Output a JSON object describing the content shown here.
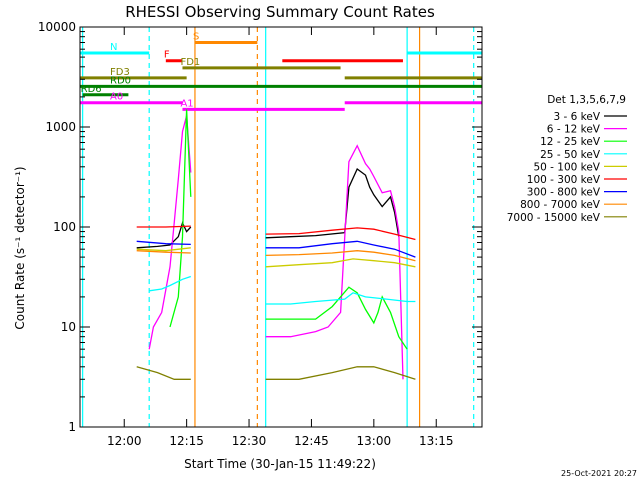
{
  "chart_data": {
    "type": "line",
    "title": "RHESSI Observing Summary Count Rates",
    "xlabel": "Start Time (30-Jan-15 11:49:22)",
    "ylabel": "Count Rate (s⁻¹ detector⁻¹)",
    "yscale": "log",
    "ylim": [
      1,
      10000
    ],
    "xlim": [
      "11:49:22",
      "13:26:00"
    ],
    "x_ticks": [
      "12:00",
      "12:15",
      "12:30",
      "12:45",
      "13:00",
      "13:15"
    ],
    "y_ticks": [
      "1",
      "10",
      "100",
      "1000",
      "10000"
    ],
    "timestamp": "25-Oct-2021 20:27",
    "legend": {
      "title": "Det 1,3,5,6,7,9",
      "position": "right"
    },
    "series": [
      {
        "name": "3 - 6 keV",
        "color": "#000000",
        "points": [
          [
            "12:03",
            62
          ],
          [
            "12:08",
            64
          ],
          [
            "12:11",
            66
          ],
          [
            "12:13",
            80
          ],
          [
            "12:14",
            110
          ],
          [
            "12:15",
            90
          ],
          [
            "12:16",
            100
          ],
          [
            null,
            null
          ],
          [
            "12:34",
            78
          ],
          [
            "12:40",
            80
          ],
          [
            "12:46",
            82
          ],
          [
            "12:53",
            88
          ],
          [
            "12:54",
            250
          ],
          [
            "12:56",
            380
          ],
          [
            "12:58",
            330
          ],
          [
            "12:59",
            250
          ],
          [
            "13:00",
            210
          ],
          [
            "13:02",
            160
          ],
          [
            "13:04",
            200
          ],
          [
            "13:05",
            140
          ],
          [
            "13:06",
            80
          ]
        ]
      },
      {
        "name": "6 - 12 keV",
        "color": "#ff00ff",
        "points": [
          [
            "12:06",
            6
          ],
          [
            "12:07",
            10
          ],
          [
            "12:09",
            14
          ],
          [
            "12:11",
            40
          ],
          [
            "12:12",
            110
          ],
          [
            "12:13",
            300
          ],
          [
            "12:14",
            900
          ],
          [
            "12:15",
            1300
          ],
          [
            "12:16",
            350
          ],
          [
            null,
            null
          ],
          [
            "12:34",
            8
          ],
          [
            "12:40",
            8
          ],
          [
            "12:46",
            9
          ],
          [
            "12:49",
            10
          ],
          [
            "12:52",
            14
          ],
          [
            "12:54",
            450
          ],
          [
            "12:56",
            650
          ],
          [
            "12:58",
            430
          ],
          [
            "12:59",
            380
          ],
          [
            "13:00",
            320
          ],
          [
            "13:02",
            220
          ],
          [
            "13:04",
            230
          ],
          [
            "13:05",
            160
          ],
          [
            "13:06",
            90
          ],
          [
            "13:07",
            3
          ]
        ]
      },
      {
        "name": "12 - 25 keV",
        "color": "#00ff00",
        "points": [
          [
            "12:11",
            10
          ],
          [
            "12:13",
            20
          ],
          [
            "12:14",
            80
          ],
          [
            "12:15",
            1500
          ],
          [
            "12:16",
            200
          ],
          [
            null,
            null
          ],
          [
            "12:34",
            12
          ],
          [
            "12:40",
            12
          ],
          [
            "12:46",
            12
          ],
          [
            "12:50",
            16
          ],
          [
            "12:54",
            25
          ],
          [
            "12:56",
            22
          ],
          [
            "12:58",
            15
          ],
          [
            "13:00",
            11
          ],
          [
            "13:01",
            14
          ],
          [
            "13:02",
            20
          ],
          [
            "13:04",
            14
          ],
          [
            "13:06",
            8
          ],
          [
            "13:08",
            6
          ]
        ]
      },
      {
        "name": "25 - 50 keV",
        "color": "#00ffff",
        "points": [
          [
            "12:06",
            23
          ],
          [
            "12:09",
            24
          ],
          [
            "12:11",
            26
          ],
          [
            "12:14",
            30
          ],
          [
            "12:16",
            32
          ],
          [
            null,
            null
          ],
          [
            "12:34",
            17
          ],
          [
            "12:40",
            17
          ],
          [
            "12:46",
            18
          ],
          [
            "12:53",
            19
          ],
          [
            "12:55",
            22
          ],
          [
            "12:58",
            20
          ],
          [
            "13:03",
            19
          ],
          [
            "13:08",
            18
          ],
          [
            "13:10",
            18
          ]
        ]
      },
      {
        "name": "50 - 100 keV",
        "color": "#cccc00",
        "points": [
          [
            "12:03",
            60
          ],
          [
            "12:10",
            58
          ],
          [
            "12:16",
            62
          ],
          [
            null,
            null
          ],
          [
            "12:34",
            40
          ],
          [
            "12:42",
            42
          ],
          [
            "12:50",
            44
          ],
          [
            "12:55",
            48
          ],
          [
            "13:00",
            46
          ],
          [
            "13:05",
            44
          ],
          [
            "13:10",
            40
          ]
        ]
      },
      {
        "name": "100 - 300 keV",
        "color": "#ff0000",
        "points": [
          [
            "12:03",
            100
          ],
          [
            "12:10",
            100
          ],
          [
            "12:16",
            102
          ],
          [
            null,
            null
          ],
          [
            "12:34",
            85
          ],
          [
            "12:42",
            86
          ],
          [
            "12:50",
            93
          ],
          [
            "12:56",
            98
          ],
          [
            "13:00",
            95
          ],
          [
            "13:05",
            85
          ],
          [
            "13:10",
            75
          ]
        ]
      },
      {
        "name": "300 - 800 keV",
        "color": "#0000ff",
        "points": [
          [
            "12:03",
            72
          ],
          [
            "12:10",
            68
          ],
          [
            "12:16",
            67
          ],
          [
            null,
            null
          ],
          [
            "12:34",
            62
          ],
          [
            "12:42",
            62
          ],
          [
            "12:50",
            68
          ],
          [
            "12:56",
            72
          ],
          [
            "13:00",
            66
          ],
          [
            "13:05",
            60
          ],
          [
            "13:10",
            50
          ]
        ]
      },
      {
        "name": "800 - 7000 keV",
        "color": "#ff8800",
        "points": [
          [
            "12:03",
            58
          ],
          [
            "12:10",
            56
          ],
          [
            "12:16",
            55
          ],
          [
            null,
            null
          ],
          [
            "12:34",
            52
          ],
          [
            "12:42",
            53
          ],
          [
            "12:50",
            55
          ],
          [
            "12:56",
            58
          ],
          [
            "13:00",
            56
          ],
          [
            "13:05",
            52
          ],
          [
            "13:10",
            46
          ]
        ]
      },
      {
        "name": "7000 - 15000 keV",
        "color": "#808000",
        "points": [
          [
            "12:03",
            4
          ],
          [
            "12:08",
            3.5
          ],
          [
            "12:12",
            3
          ],
          [
            "12:16",
            3
          ],
          [
            null,
            null
          ],
          [
            "12:34",
            3
          ],
          [
            "12:42",
            3
          ],
          [
            "12:50",
            3.5
          ],
          [
            "12:56",
            4
          ],
          [
            "13:00",
            4
          ],
          [
            "13:05",
            3.5
          ],
          [
            "13:10",
            3
          ]
        ]
      }
    ],
    "state_bars": [
      {
        "label": "N",
        "color": "#00ffff",
        "y": 5500,
        "segments": [
          [
            "11:49:22",
            "12:06"
          ],
          [
            "13:08",
            "13:26"
          ]
        ]
      },
      {
        "label": "S",
        "color": "#ff8800",
        "y": 7000,
        "segments": [
          [
            "12:17",
            "12:32"
          ]
        ]
      },
      {
        "label": "F",
        "color": "#ff0000",
        "y": 4600,
        "segments": [
          [
            "12:10",
            "12:14"
          ],
          [
            "12:38",
            "13:07"
          ]
        ]
      },
      {
        "label": "FD1",
        "color": "#808000",
        "y": 3900,
        "segments": [
          [
            "12:14",
            "12:52"
          ]
        ]
      },
      {
        "label": "FD3",
        "color": "#808000",
        "y": 3100,
        "segments": [
          [
            "11:49:22",
            "12:15"
          ],
          [
            "12:53",
            "13:26"
          ]
        ]
      },
      {
        "label": "RD0",
        "color": "#008000",
        "y": 2550,
        "segments": [
          [
            "11:49:22",
            "13:26"
          ]
        ]
      },
      {
        "label": "RD6",
        "color": "#008000",
        "y": 2100,
        "segments": [
          [
            "11:50",
            "12:01"
          ]
        ]
      },
      {
        "label": "A1",
        "color": "#ff00ff",
        "y": 1500,
        "segments": [
          [
            "12:14",
            "12:53"
          ]
        ]
      },
      {
        "label": "A0",
        "color": "#ff00ff",
        "y": 1750,
        "segments": [
          [
            "11:49:22",
            "12:14"
          ],
          [
            "12:53",
            "13:26"
          ]
        ]
      }
    ],
    "vertical_lines": [
      {
        "color": "#00ffff",
        "style": "solid",
        "x": [
          "11:50",
          "13:08",
          "12:34"
        ]
      },
      {
        "color": "#00ffff",
        "style": "dashed",
        "x": [
          "12:06",
          "13:24"
        ]
      },
      {
        "color": "#ff8800",
        "style": "solid",
        "x": [
          "12:17",
          "13:11"
        ]
      },
      {
        "color": "#ff8800",
        "style": "dashed",
        "x": [
          "12:32"
        ]
      }
    ]
  }
}
